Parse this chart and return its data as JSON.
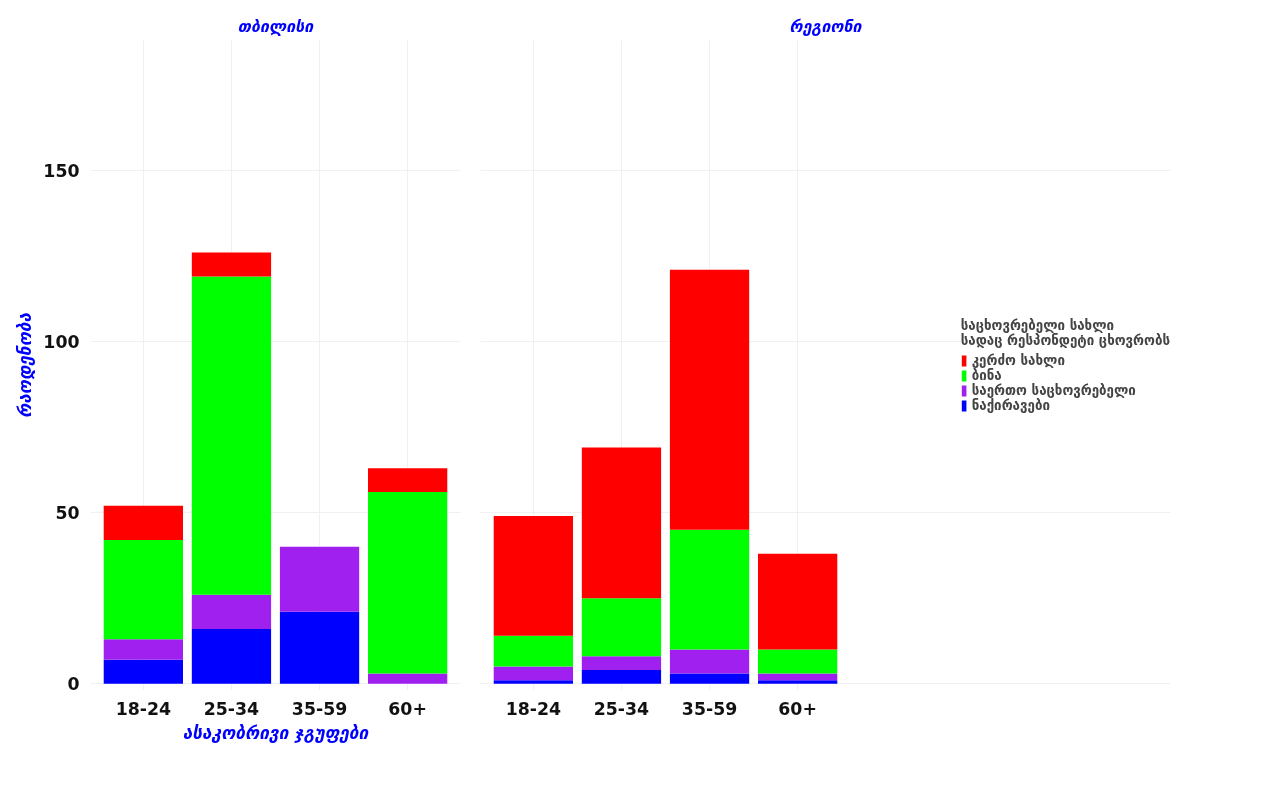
{
  "chart_data": [
    {
      "type": "bar",
      "stacked": true,
      "title": "თბილისი",
      "xlabel": "ასაკობრივი ჯგუფები",
      "ylabel": "რაოდენობა",
      "categories": [
        "18-24",
        "25-34",
        "35-59",
        "60+"
      ],
      "ylim": [
        -2,
        188
      ],
      "yticks": [
        0,
        50,
        100,
        150
      ],
      "grid": true,
      "legend": false,
      "series": [
        {
          "color": "#0000ff",
          "values": [
            7,
            16,
            21,
            0
          ]
        },
        {
          "color": "#a020f0",
          "values": [
            6,
            10,
            19,
            3
          ]
        },
        {
          "color": "#00ff00",
          "values": [
            29,
            93,
            0,
            53
          ]
        },
        {
          "color": "#ff0000",
          "values": [
            10,
            7,
            0,
            7
          ]
        }
      ]
    },
    {
      "type": "bar",
      "stacked": true,
      "title": "რეგიონი",
      "legend_title": "საცხოვრებელი სახლი\nსადაც რესპონდეტი ცხოვრობს",
      "categories": [
        "18-24",
        "25-34",
        "35-59",
        "60+"
      ],
      "ylim": [
        -2,
        188
      ],
      "yticks": [
        0,
        50,
        100,
        150
      ],
      "grid": true,
      "legend": "right",
      "tick_labels": "x",
      "series": [
        {
          "name": "ნაქირავები",
          "color": "#0000ff",
          "values": [
            1,
            4,
            3,
            1
          ]
        },
        {
          "name": "საერთო საცხოვრებელი",
          "color": "#a020f0",
          "values": [
            4,
            4,
            7,
            2
          ]
        },
        {
          "name": "ბინა",
          "color": "#00ff00",
          "values": [
            9,
            17,
            35,
            7
          ]
        },
        {
          "name": "კერძო სახლი",
          "color": "#ff0000",
          "values": [
            35,
            44,
            76,
            28
          ]
        }
      ]
    }
  ]
}
